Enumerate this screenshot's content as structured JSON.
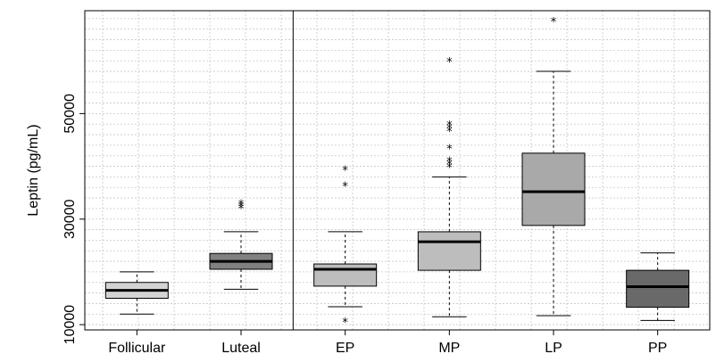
{
  "chart_data": {
    "type": "box",
    "ylabel": "Leptin (pg/mL)",
    "ylim": [
      9000,
      69500
    ],
    "yticks": [
      10000,
      30000,
      50000
    ],
    "ytick_labels": [
      "10000",
      "30000",
      "50000"
    ],
    "grid": true,
    "separator_after_category": "Luteal",
    "categories": [
      "Follicular",
      "Luteal",
      "EP",
      "MP",
      "LP",
      "PP"
    ],
    "boxes": [
      {
        "category": "Follicular",
        "whisker_low": 12000,
        "q1": 15000,
        "median": 16500,
        "q3": 18000,
        "whisker_high": 20000,
        "outliers": [],
        "fill": "#d3d3d3"
      },
      {
        "category": "Luteal",
        "whisker_low": 16700,
        "q1": 20500,
        "median": 22000,
        "q3": 23500,
        "whisker_high": 27600,
        "outliers": [
          32100,
          32500,
          32900
        ],
        "fill": "#808080"
      },
      {
        "category": "EP",
        "whisker_low": 13400,
        "q1": 17300,
        "median": 20500,
        "q3": 21500,
        "whisker_high": 27600,
        "outliers": [
          10500,
          36300,
          39300
        ],
        "fill": "#bdbdbd"
      },
      {
        "category": "MP",
        "whisker_low": 11500,
        "q1": 20300,
        "median": 25700,
        "q3": 27600,
        "whisker_high": 38000,
        "outliers": [
          39800,
          40400,
          41000,
          43400,
          46700,
          47300,
          47900,
          59900
        ],
        "fill": "#bdbdbd"
      },
      {
        "category": "LP",
        "whisker_low": 11700,
        "q1": 28800,
        "median": 35200,
        "q3": 42500,
        "whisker_high": 58000,
        "outliers": [
          67500
        ],
        "fill": "#a9a9a9"
      },
      {
        "category": "PP",
        "whisker_low": 10800,
        "q1": 13300,
        "median": 17200,
        "q3": 20300,
        "whisker_high": 23600,
        "outliers": [],
        "fill": "#696969"
      }
    ]
  }
}
